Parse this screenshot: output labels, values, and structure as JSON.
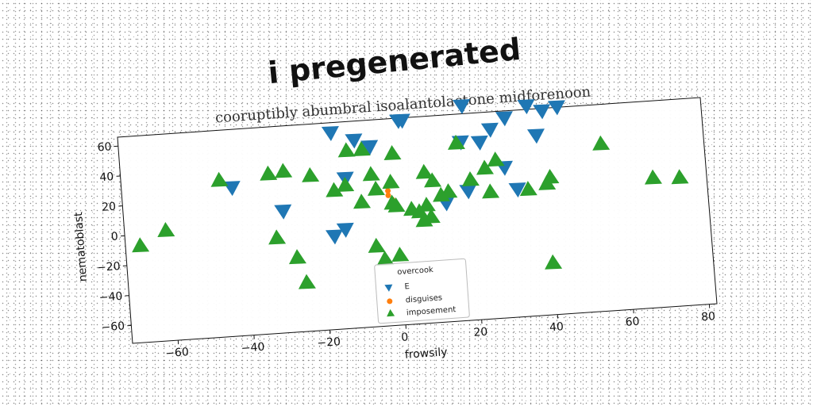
{
  "chart_data": {
    "type": "scatter",
    "title": "i pregenerated",
    "subtitle": "cooruptibly abumbral isoalantolactone midforenoon",
    "xlabel": "frowsily",
    "ylabel": "nematoblast",
    "xlim": [
      -72,
      82
    ],
    "ylim": [
      -72,
      66
    ],
    "xticks": [
      -60,
      -40,
      -20,
      0,
      20,
      40,
      60,
      80
    ],
    "yticks": [
      -60,
      -40,
      -20,
      0,
      20,
      40,
      60
    ],
    "grid": false,
    "legend": {
      "placement": "lower-center",
      "title": "overcook",
      "entries": [
        "E",
        "disguises",
        "imposement"
      ]
    },
    "series": [
      {
        "name": "E",
        "marker": "triangle-down",
        "color": "#1f77b4",
        "points": [
          [
            -16,
            59
          ],
          [
            -10,
            53
          ],
          [
            -6,
            48
          ],
          [
            -13,
            28
          ],
          [
            -43,
            27
          ],
          [
            -30,
            9
          ],
          [
            -17,
            -10
          ],
          [
            2,
            64
          ],
          [
            3,
            64
          ],
          [
            19,
            71
          ],
          [
            26,
            54
          ],
          [
            23,
            46
          ],
          [
            18,
            47
          ],
          [
            30,
            61
          ],
          [
            36,
            68
          ],
          [
            40,
            64
          ],
          [
            44,
            66
          ],
          [
            38,
            48
          ],
          [
            29,
            28
          ],
          [
            32,
            13
          ],
          [
            19,
            14
          ],
          [
            13,
            7
          ],
          [
            -14,
            -6
          ]
        ]
      },
      {
        "name": "disguises",
        "marker": "circle",
        "color": "#ff7f0e",
        "points": [
          [
            -2,
            21
          ],
          [
            -2,
            18
          ],
          [
            -2,
            15
          ],
          [
            -1,
            12
          ],
          [
            -1,
            9
          ]
        ]
      },
      {
        "name": "imposement",
        "marker": "triangle-up",
        "color": "#2ca02c",
        "points": [
          [
            -61,
            2
          ],
          [
            -68,
            -7
          ],
          [
            -46,
            33
          ],
          [
            -33,
            35
          ],
          [
            -29,
            36
          ],
          [
            -22,
            32
          ],
          [
            -16,
            21
          ],
          [
            -13,
            24
          ],
          [
            -9,
            12
          ],
          [
            -6,
            30
          ],
          [
            -8,
            47
          ],
          [
            -12,
            47
          ],
          [
            -5,
            20
          ],
          [
            -1,
            24
          ],
          [
            -1,
            10
          ],
          [
            0,
            8
          ],
          [
            4,
            5
          ],
          [
            6,
            3
          ],
          [
            8,
            7
          ],
          [
            7,
            -3
          ],
          [
            9,
            -1
          ],
          [
            12,
            13
          ],
          [
            14,
            15
          ],
          [
            8,
            29
          ],
          [
            10,
            23
          ],
          [
            0,
            43
          ],
          [
            17,
            47
          ],
          [
            20,
            22
          ],
          [
            24,
            29
          ],
          [
            27,
            34
          ],
          [
            25,
            13
          ],
          [
            35,
            13
          ],
          [
            41,
            20
          ],
          [
            40,
            16
          ],
          [
            55,
            40
          ],
          [
            68,
            15
          ],
          [
            75,
            14
          ],
          [
            -32,
            -8
          ],
          [
            -27,
            -22
          ],
          [
            -25,
            -39
          ],
          [
            -6,
            -18
          ],
          [
            -4,
            -27
          ],
          [
            0,
            -25
          ],
          [
            40,
            -37
          ]
        ]
      }
    ]
  }
}
